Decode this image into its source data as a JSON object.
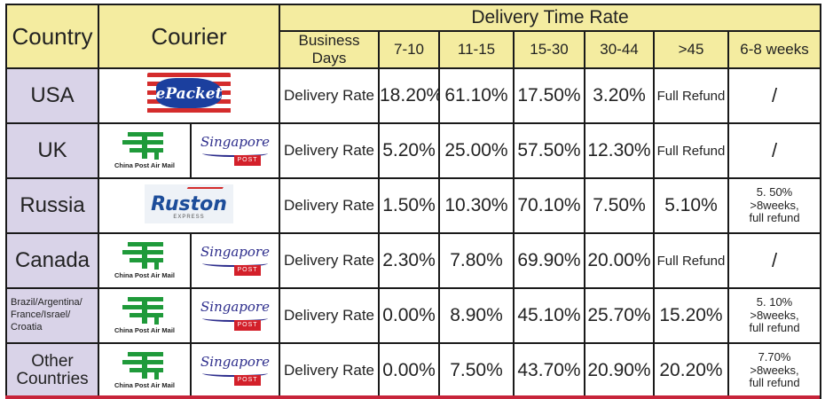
{
  "header": {
    "country": "Country",
    "courier": "Courier",
    "title": "Delivery Time Rate",
    "business_days": "Business Days",
    "columns": [
      "7-10",
      "11-15",
      "15-30",
      "30-44",
      ">45",
      "6-8 weeks"
    ]
  },
  "logos": {
    "epacket": "ePacket",
    "china_post": "China Post Air Mail",
    "singapore_script": "Singapore",
    "singapore_box": "POST",
    "ruston": "Ruston",
    "ruston_sub": "EXPRESS"
  },
  "rows": [
    {
      "country": "USA",
      "label": "Delivery Rate",
      "values": [
        "18.20%",
        "61.10%",
        "17.50%",
        "3.20%",
        "Full Refund",
        "/"
      ]
    },
    {
      "country": "UK",
      "label": "Delivery Rate",
      "values": [
        "5.20%",
        "25.00%",
        "57.50%",
        "12.30%",
        "Full Refund",
        "/"
      ]
    },
    {
      "country": "Russia",
      "label": "Delivery Rate",
      "values": [
        "1.50%",
        "10.30%",
        "70.10%",
        "7.50%",
        "5.10%"
      ],
      "note": [
        "5. 50%",
        ">8weeks,",
        "full refund"
      ]
    },
    {
      "country": "Canada",
      "label": "Delivery Rate",
      "values": [
        "2.30%",
        "7.80%",
        "69.90%",
        "20.00%",
        "Full Refund",
        "/"
      ]
    },
    {
      "country": "Brazil/Argentina/ France/Israel/ Croatia",
      "label": "Delivery Rate",
      "values": [
        "0.00%",
        "8.90%",
        "45.10%",
        "25.70%",
        "15.20%"
      ],
      "note": [
        "5. 10%",
        ">8weeks,",
        "full refund"
      ]
    },
    {
      "country": "Other Countries",
      "label": "Delivery Rate",
      "values": [
        "0.00%",
        "7.50%",
        "43.70%",
        "20.90%",
        "20.20%"
      ],
      "note": [
        "7.70%",
        ">8weeks,",
        "full refund"
      ]
    }
  ],
  "colors": {
    "header_bg": "#f4eca0",
    "country_bg": "#d9d3e8",
    "border": "#1a1a1a",
    "accent_red": "#c7243a"
  }
}
